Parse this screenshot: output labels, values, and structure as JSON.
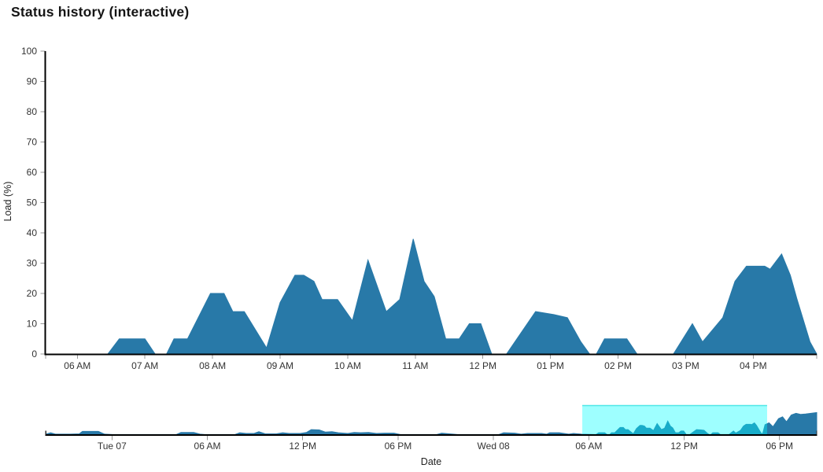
{
  "title": "Status history (interactive)",
  "chart_data": [
    {
      "type": "area",
      "role": "main-chart",
      "title": "Status history (interactive)",
      "xlabel": "",
      "ylabel": "Load (%)",
      "ylim": [
        0,
        100
      ],
      "grid": false,
      "legend": "none",
      "y_ticks": [
        0,
        10,
        20,
        30,
        40,
        50,
        60,
        70,
        80,
        90,
        100
      ],
      "x_range_hours": [
        5.53,
        16.94
      ],
      "x_ticks": [
        {
          "t": 6,
          "label": "06 AM"
        },
        {
          "t": 7,
          "label": "07 AM"
        },
        {
          "t": 8,
          "label": "08 AM"
        },
        {
          "t": 9,
          "label": "09 AM"
        },
        {
          "t": 10,
          "label": "10 AM"
        },
        {
          "t": 11,
          "label": "11 AM"
        },
        {
          "t": 12,
          "label": "12 PM"
        },
        {
          "t": 13,
          "label": "01 PM"
        },
        {
          "t": 14,
          "label": "02 PM"
        },
        {
          "t": 15,
          "label": "03 PM"
        },
        {
          "t": 16,
          "label": "04 PM"
        }
      ],
      "series": [
        {
          "name": "Load",
          "color": "#2879a8",
          "points": [
            [
              5.53,
              0
            ],
            [
              6.45,
              0
            ],
            [
              6.62,
              5
            ],
            [
              7.0,
              5
            ],
            [
              7.15,
              0
            ],
            [
              7.32,
              0
            ],
            [
              7.43,
              5
            ],
            [
              7.63,
              5
            ],
            [
              7.97,
              20
            ],
            [
              8.17,
              20
            ],
            [
              8.3,
              14
            ],
            [
              8.47,
              14
            ],
            [
              8.8,
              2
            ],
            [
              9.0,
              17
            ],
            [
              9.22,
              26
            ],
            [
              9.35,
              26
            ],
            [
              9.5,
              24
            ],
            [
              9.62,
              18
            ],
            [
              9.85,
              18
            ],
            [
              10.07,
              11
            ],
            [
              10.3,
              31
            ],
            [
              10.57,
              14
            ],
            [
              10.77,
              18
            ],
            [
              10.97,
              38
            ],
            [
              11.13,
              24
            ],
            [
              11.28,
              19
            ],
            [
              11.45,
              5
            ],
            [
              11.65,
              5
            ],
            [
              11.8,
              10
            ],
            [
              11.97,
              10
            ],
            [
              12.13,
              0
            ],
            [
              12.35,
              0
            ],
            [
              12.78,
              14
            ],
            [
              13.05,
              13
            ],
            [
              13.25,
              12
            ],
            [
              13.45,
              4
            ],
            [
              13.58,
              0
            ],
            [
              13.68,
              0
            ],
            [
              13.8,
              5
            ],
            [
              14.13,
              5
            ],
            [
              14.28,
              0
            ],
            [
              14.82,
              0
            ],
            [
              15.1,
              10
            ],
            [
              15.25,
              4
            ],
            [
              15.55,
              12
            ],
            [
              15.73,
              24
            ],
            [
              15.9,
              29
            ],
            [
              16.17,
              29
            ],
            [
              16.25,
              28
            ],
            [
              16.42,
              33
            ],
            [
              16.55,
              26
            ],
            [
              16.65,
              18
            ],
            [
              16.84,
              4
            ],
            [
              16.94,
              0
            ]
          ]
        }
      ]
    },
    {
      "type": "area",
      "role": "range-selector-overview",
      "xlabel": "Date",
      "x_range_hours": [
        0,
        48.5
      ],
      "x_ticks": [
        {
          "h": 4.16,
          "label": "Tue 07"
        },
        {
          "h": 10.16,
          "label": "06 AM"
        },
        {
          "h": 16.16,
          "label": "12 PM"
        },
        {
          "h": 22.16,
          "label": "06 PM"
        },
        {
          "h": 28.16,
          "label": "Wed 08"
        },
        {
          "h": 34.16,
          "label": "06 AM"
        },
        {
          "h": 40.16,
          "label": "12 PM"
        },
        {
          "h": 46.16,
          "label": "06 PM"
        }
      ],
      "selection": {
        "start_h": 33.75,
        "end_h": 45.38,
        "fill": "rgba(0,255,255,0.38)",
        "border": "rgba(0,215,215,0.6)"
      },
      "series": [
        {
          "name": "Load",
          "color": "#2879a8",
          "points": [
            [
              0,
              1
            ],
            [
              0.3,
              5
            ],
            [
              0.6,
              1
            ],
            [
              1.5,
              1
            ],
            [
              2.1,
              2
            ],
            [
              2.3,
              9
            ],
            [
              3.3,
              9
            ],
            [
              3.7,
              1
            ],
            [
              4.2,
              0
            ],
            [
              8.2,
              0
            ],
            [
              8.5,
              6
            ],
            [
              9.3,
              6
            ],
            [
              9.7,
              1
            ],
            [
              10.0,
              0
            ],
            [
              11.9,
              0
            ],
            [
              12.2,
              5
            ],
            [
              12.6,
              3
            ],
            [
              13.1,
              3
            ],
            [
              13.4,
              8
            ],
            [
              13.8,
              2
            ],
            [
              14.5,
              2
            ],
            [
              14.9,
              5
            ],
            [
              15.3,
              3
            ],
            [
              16.0,
              3
            ],
            [
              16.4,
              6
            ],
            [
              16.7,
              14
            ],
            [
              17.2,
              13
            ],
            [
              17.6,
              7
            ],
            [
              18.0,
              8
            ],
            [
              18.4,
              5
            ],
            [
              19.0,
              3
            ],
            [
              19.4,
              6
            ],
            [
              19.8,
              5
            ],
            [
              20.3,
              6
            ],
            [
              20.8,
              3
            ],
            [
              21.3,
              4
            ],
            [
              21.9,
              4
            ],
            [
              22.3,
              0
            ],
            [
              24.6,
              0
            ],
            [
              24.9,
              4
            ],
            [
              25.4,
              2
            ],
            [
              25.9,
              0
            ],
            [
              28.5,
              0
            ],
            [
              28.8,
              5
            ],
            [
              29.5,
              4
            ],
            [
              29.9,
              1
            ],
            [
              30.3,
              3
            ],
            [
              31.2,
              3
            ],
            [
              31.5,
              1
            ],
            [
              31.7,
              5
            ],
            [
              32.3,
              5
            ],
            [
              32.9,
              1
            ],
            [
              33.2,
              3
            ],
            [
              33.7,
              1
            ],
            [
              34.61,
              0
            ],
            [
              34.78,
              5
            ],
            [
              35.16,
              5
            ],
            [
              35.31,
              0
            ],
            [
              35.48,
              0
            ],
            [
              35.59,
              5
            ],
            [
              35.79,
              5
            ],
            [
              36.13,
              20
            ],
            [
              36.33,
              20
            ],
            [
              36.46,
              14
            ],
            [
              36.63,
              14
            ],
            [
              36.96,
              2
            ],
            [
              37.16,
              17
            ],
            [
              37.38,
              26
            ],
            [
              37.51,
              26
            ],
            [
              37.66,
              24
            ],
            [
              37.78,
              18
            ],
            [
              38.01,
              18
            ],
            [
              38.23,
              11
            ],
            [
              38.46,
              31
            ],
            [
              38.73,
              14
            ],
            [
              38.93,
              18
            ],
            [
              39.13,
              38
            ],
            [
              39.29,
              24
            ],
            [
              39.44,
              19
            ],
            [
              39.61,
              5
            ],
            [
              39.81,
              5
            ],
            [
              39.96,
              10
            ],
            [
              40.13,
              10
            ],
            [
              40.29,
              0
            ],
            [
              40.51,
              0
            ],
            [
              40.94,
              14
            ],
            [
              41.21,
              13
            ],
            [
              41.41,
              12
            ],
            [
              41.61,
              4
            ],
            [
              41.74,
              0
            ],
            [
              41.84,
              0
            ],
            [
              41.96,
              5
            ],
            [
              42.29,
              5
            ],
            [
              42.44,
              0
            ],
            [
              42.98,
              0
            ],
            [
              43.26,
              10
            ],
            [
              43.41,
              4
            ],
            [
              43.71,
              12
            ],
            [
              43.89,
              24
            ],
            [
              44.06,
              29
            ],
            [
              44.33,
              29
            ],
            [
              44.41,
              28
            ],
            [
              44.58,
              33
            ],
            [
              44.71,
              26
            ],
            [
              44.81,
              18
            ],
            [
              45.0,
              4
            ],
            [
              45.1,
              2
            ],
            [
              45.25,
              28
            ],
            [
              45.5,
              33
            ],
            [
              45.75,
              22
            ],
            [
              46.1,
              45
            ],
            [
              46.35,
              50
            ],
            [
              46.6,
              36
            ],
            [
              46.9,
              55
            ],
            [
              47.2,
              60
            ],
            [
              47.5,
              57
            ],
            [
              47.8,
              58
            ],
            [
              48.5,
              62
            ]
          ]
        }
      ]
    }
  ]
}
